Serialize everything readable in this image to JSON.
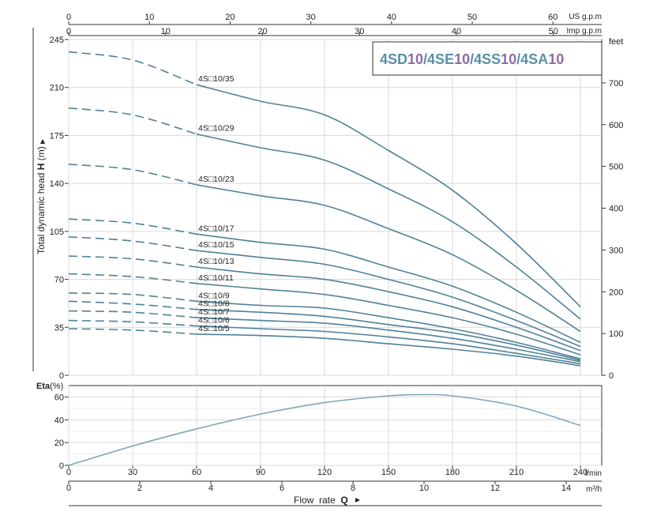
{
  "chart_data": {
    "type": "line",
    "title": "4SD10/4SE10/4SS10/4SA10",
    "title_parts": [
      {
        "text": "4SD",
        "color": "#5a8fa8"
      },
      {
        "text": "10",
        "color": "#8e6ba8"
      },
      {
        "text": "/4SE",
        "color": "#5a8fa8"
      },
      {
        "text": "10",
        "color": "#8e6ba8"
      },
      {
        "text": "/4SS",
        "color": "#5a8fa8"
      },
      {
        "text": "10",
        "color": "#8e6ba8"
      },
      {
        "text": "/4SA",
        "color": "#5a8fa8"
      },
      {
        "text": "10",
        "color": "#8e6ba8"
      }
    ],
    "curve_color": "#4f8198",
    "head_axis": {
      "label_prefix": "Total dynamic head ",
      "label_symbol": "H",
      "label_suffix": " (m)",
      "ylim": [
        0,
        245
      ],
      "ticks": [
        0,
        35,
        70,
        105,
        140,
        175,
        210,
        245
      ]
    },
    "feet_axis": {
      "label": "feet",
      "ticks": [
        0,
        100,
        200,
        300,
        400,
        500,
        600,
        700
      ]
    },
    "flow_axis": {
      "label_prefix": "Flow  rate  ",
      "label_symbol": "Q",
      "xlim": [
        0,
        250
      ],
      "lmin_label": "l/min",
      "lmin_ticks": [
        0,
        30,
        60,
        90,
        120,
        150,
        180,
        210,
        240
      ],
      "m3h_label": "m³/h",
      "m3h_ticks": [
        0,
        2,
        4,
        6,
        8,
        10,
        12,
        14
      ]
    },
    "us_gpm_axis": {
      "label": "US g.p.m",
      "ticks": [
        0,
        10,
        20,
        30,
        40,
        50,
        60
      ]
    },
    "imp_gpm_axis": {
      "label": "Imp g.p.m",
      "ticks": [
        0,
        10,
        20,
        30,
        40,
        50
      ]
    },
    "flow_x": [
      0,
      30,
      60,
      90,
      120,
      150,
      180,
      210,
      240
    ],
    "dashed_until": 60,
    "series": [
      {
        "name": "4S□10/35",
        "values": [
          236,
          230,
          212,
          200,
          190,
          164,
          135,
          96,
          50
        ]
      },
      {
        "name": "4S□10/29",
        "values": [
          195,
          190,
          176,
          166,
          157,
          136,
          112,
          79,
          41
        ]
      },
      {
        "name": "4S□10/23",
        "values": [
          154,
          150,
          139,
          131,
          124,
          107,
          88,
          62,
          32
        ]
      },
      {
        "name": "4S□10/17",
        "values": [
          114,
          111,
          103,
          97,
          92,
          79,
          65,
          46,
          24
        ]
      },
      {
        "name": "4S□10/15",
        "values": [
          101,
          98,
          91,
          86,
          81,
          70,
          57,
          40,
          21
        ]
      },
      {
        "name": "4S□10/13",
        "values": [
          87,
          85,
          79,
          74,
          70,
          61,
          50,
          35,
          18
        ]
      },
      {
        "name": "4S□10/11",
        "values": [
          74,
          72,
          67,
          63,
          59,
          51,
          42,
          30,
          15
        ]
      },
      {
        "name": "4S□10/9",
        "values": [
          60,
          59,
          54,
          51,
          49,
          42,
          34,
          24,
          12
        ]
      },
      {
        "name": "4S□10/8",
        "values": [
          54,
          52,
          48,
          46,
          43,
          37,
          31,
          22,
          11
        ]
      },
      {
        "name": "4S□10/7",
        "values": [
          47,
          46,
          42,
          40,
          38,
          33,
          27,
          19,
          10
        ]
      },
      {
        "name": "4S□10/6",
        "values": [
          40,
          39,
          36,
          34,
          32,
          28,
          23,
          16,
          8.5
        ]
      },
      {
        "name": "4S□10/5",
        "values": [
          34,
          33,
          30,
          29,
          27,
          23,
          19,
          14,
          7
        ]
      }
    ],
    "efficiency": {
      "label": "Eta",
      "unit": "(%)",
      "ylim": [
        0,
        70
      ],
      "ticks": [
        0,
        20,
        40,
        60
      ],
      "x": [
        0,
        30,
        60,
        90,
        120,
        150,
        165,
        180,
        210,
        240
      ],
      "values": [
        0,
        17,
        32,
        45,
        55,
        61,
        62,
        61,
        52,
        35
      ]
    }
  }
}
